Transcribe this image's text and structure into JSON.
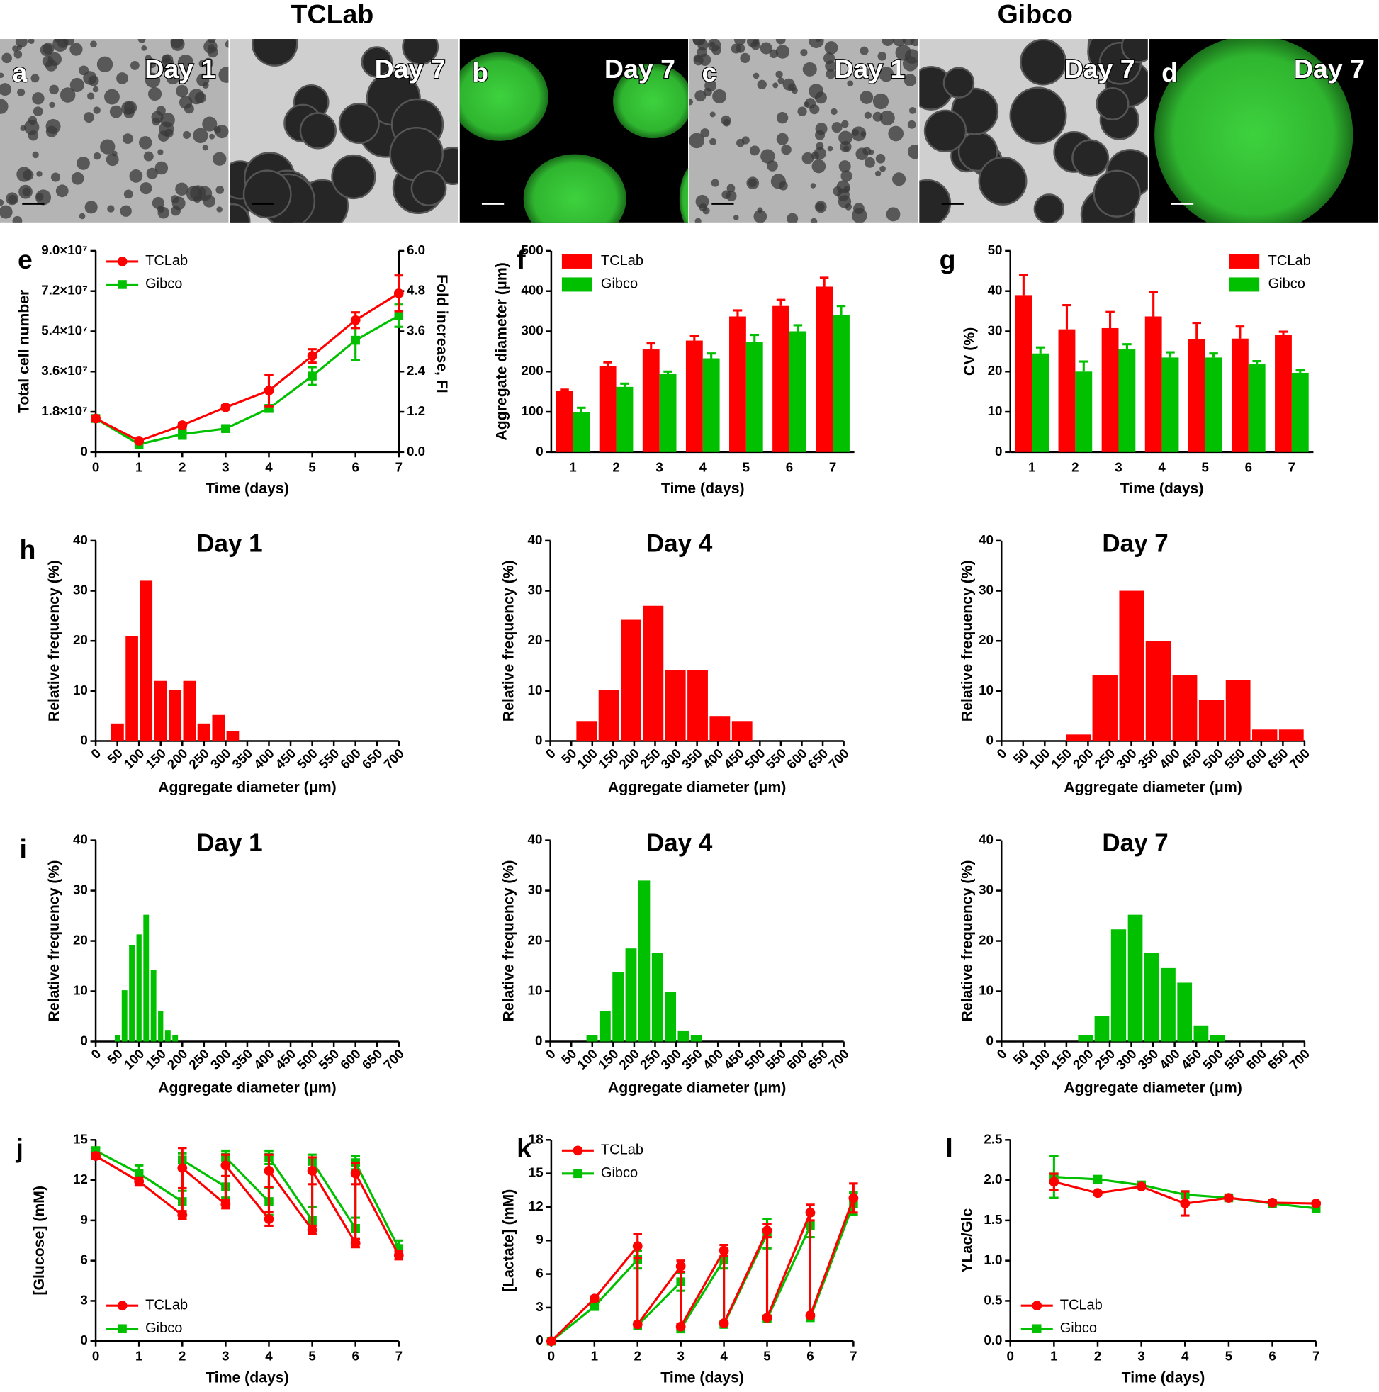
{
  "header": {
    "left": "TCLab",
    "right": "Gibco"
  },
  "images": [
    {
      "panel": "a",
      "label": "Day 1"
    },
    {
      "label": "Day 7"
    },
    {
      "panel": "b",
      "label": "Day 7"
    },
    {
      "panel": "c",
      "label": "Day 1"
    },
    {
      "label": "Day 7"
    },
    {
      "panel": "d",
      "label": "Day 7"
    }
  ],
  "chart_data": [
    {
      "type": "line",
      "panel": "e",
      "xlabel": "Time (days)",
      "ylabel": "Total cell number",
      "y2label": "Fold increase, FI",
      "x": [
        0,
        1,
        2,
        3,
        4,
        5,
        6,
        7
      ],
      "xlim": [
        0,
        7
      ],
      "xticks": [
        0,
        1,
        2,
        3,
        4,
        5,
        6,
        7
      ],
      "ylim": [
        0,
        90000000
      ],
      "yticks": [
        0,
        {
          "value": 18000000,
          "label": "1.8×10⁷"
        },
        {
          "value": 36000000,
          "label": "3.6×10⁷"
        },
        {
          "value": 54000000,
          "label": "5.4×10⁷"
        },
        {
          "value": 72000000,
          "label": "7.2×10⁷"
        },
        {
          "value": 90000000,
          "label": "9.0×10⁷"
        }
      ],
      "y2lim": [
        0,
        6
      ],
      "y2ticks": [
        {
          "value": 0,
          "label": "0.0"
        },
        1.2,
        2.4,
        3.6,
        4.8,
        {
          "value": 6,
          "label": "6.0"
        }
      ],
      "legend": "upper left",
      "series": [
        {
          "name": "TCLab",
          "color": "#ff0000",
          "marker": "circle",
          "values": [
            15000000,
            5000000,
            12000000,
            20000000,
            27500000,
            43000000,
            59000000,
            71000000
          ],
          "errors": [
            1000000,
            500000,
            1000000,
            1000000,
            7000000,
            3000000,
            3500000,
            8000000
          ]
        },
        {
          "name": "Gibco",
          "color": "#00c000",
          "marker": "square",
          "values": [
            15000000,
            3500000,
            8000000,
            10500000,
            19500000,
            34000000,
            50000000,
            61000000
          ],
          "errors": [
            1000000,
            500000,
            2000000,
            1000000,
            1000000,
            4000000,
            9000000,
            5000000
          ]
        }
      ]
    },
    {
      "type": "bar",
      "panel": "f",
      "xlabel": "Time (days)",
      "ylabel": "Aggregate diameter (μm)",
      "categories": [
        "1",
        "2",
        "3",
        "4",
        "5",
        "6",
        "7"
      ],
      "ylim": [
        0,
        500
      ],
      "yticks": [
        0,
        100,
        200,
        300,
        400,
        500
      ],
      "legend": "upper left",
      "series": [
        {
          "name": "TCLab",
          "color": "#ff0000",
          "values": [
            152,
            213,
            255,
            277,
            337,
            363,
            411
          ],
          "errors": [
            3,
            10,
            15,
            12,
            15,
            15,
            22
          ]
        },
        {
          "name": "Gibco",
          "color": "#00c000",
          "values": [
            100,
            162,
            195,
            233,
            273,
            300,
            341
          ],
          "errors": [
            10,
            8,
            5,
            12,
            18,
            15,
            22
          ]
        }
      ]
    },
    {
      "type": "bar",
      "panel": "g",
      "xlabel": "Time (days)",
      "ylabel": "CV (%)",
      "categories": [
        "1",
        "2",
        "3",
        "4",
        "5",
        "6",
        "7"
      ],
      "ylim": [
        0,
        50
      ],
      "yticks": [
        0,
        10,
        20,
        30,
        40,
        50
      ],
      "legend": "upper right",
      "series": [
        {
          "name": "TCLab",
          "color": "#ff0000",
          "values": [
            39,
            30.5,
            30.8,
            33.7,
            28.1,
            28.2,
            29.1
          ],
          "errors": [
            5,
            6,
            4,
            6,
            4,
            3,
            0.8
          ]
        },
        {
          "name": "Gibco",
          "color": "#00c000",
          "values": [
            24.5,
            20,
            25.5,
            23.5,
            23.5,
            21.8,
            19.7
          ],
          "errors": [
            1.5,
            2.5,
            1.3,
            1.3,
            1,
            0.8,
            0.6
          ]
        }
      ]
    },
    {
      "type": "histogram",
      "panel": "h",
      "title": "Day 1",
      "xlabel": "Aggregate diameter (μm)",
      "ylabel": "Relative frequency (%)",
      "color": "#ff0000",
      "bins": [
        33,
        67,
        100,
        133,
        167,
        200,
        233,
        267,
        300,
        333
      ],
      "values": [
        3.5,
        21,
        32,
        12,
        10.2,
        12,
        3.5,
        5.2,
        2
      ],
      "xlim": [
        0,
        700
      ],
      "xticks": [
        0,
        50,
        100,
        150,
        200,
        250,
        300,
        350,
        400,
        450,
        500,
        550,
        600,
        650,
        700
      ],
      "ylim": [
        0,
        40
      ],
      "yticks": [
        0,
        10,
        20,
        30,
        40
      ]
    },
    {
      "type": "histogram",
      "title": "Day 4",
      "xlabel": "Aggregate diameter (μm)",
      "ylabel": "Relative frequency (%)",
      "color": "#ff0000",
      "bins": [
        60,
        113,
        166,
        219,
        272,
        325,
        378,
        431,
        484
      ],
      "values": [
        4,
        10.2,
        24.2,
        27,
        14.2,
        14.2,
        5,
        4
      ],
      "xlim": [
        0,
        700
      ],
      "xticks": [
        0,
        50,
        100,
        150,
        200,
        250,
        300,
        350,
        400,
        450,
        500,
        550,
        600,
        650,
        700
      ],
      "ylim": [
        0,
        40
      ],
      "yticks": [
        0,
        10,
        20,
        30,
        40
      ]
    },
    {
      "type": "histogram",
      "title": "Day 7",
      "xlabel": "Aggregate diameter (μm)",
      "ylabel": "Relative frequency (%)",
      "color": "#ff0000",
      "bins": [
        147,
        208,
        270,
        331,
        393,
        454,
        516,
        577,
        639,
        700
      ],
      "values": [
        1.3,
        13.2,
        30,
        20,
        13.2,
        8.2,
        12.2,
        2.3,
        2.3
      ],
      "xlim": [
        0,
        700
      ],
      "xticks": [
        0,
        50,
        100,
        150,
        200,
        250,
        300,
        350,
        400,
        450,
        500,
        550,
        600,
        650,
        700
      ],
      "ylim": [
        0,
        40
      ],
      "yticks": [
        0,
        10,
        20,
        30,
        40
      ]
    },
    {
      "type": "histogram",
      "panel": "i",
      "title": "Day 1",
      "xlabel": "Aggregate diameter (μm)",
      "ylabel": "Relative frequency (%)",
      "color": "#00c000",
      "bins": [
        42,
        58,
        75,
        92,
        108,
        125,
        142,
        158,
        175,
        192
      ],
      "values": [
        1.2,
        10.2,
        19.2,
        21.3,
        25.2,
        14.2,
        6,
        2.3,
        1.2
      ],
      "xlim": [
        0,
        700
      ],
      "xticks": [
        0,
        50,
        100,
        150,
        200,
        250,
        300,
        350,
        400,
        450,
        500,
        550,
        600,
        650,
        700
      ],
      "ylim": [
        0,
        40
      ],
      "yticks": [
        0,
        10,
        20,
        30,
        40
      ]
    },
    {
      "type": "histogram",
      "title": "Day 4",
      "xlabel": "Aggregate diameter (μm)",
      "ylabel": "Relative frequency (%)",
      "color": "#00c000",
      "bins": [
        84,
        115,
        146,
        177,
        208,
        240,
        271,
        302,
        333,
        364
      ],
      "values": [
        1.2,
        6,
        13.8,
        18.5,
        32,
        17.6,
        9.8,
        2.2,
        1.2
      ],
      "xlim": [
        0,
        700
      ],
      "xticks": [
        0,
        50,
        100,
        150,
        200,
        250,
        300,
        350,
        400,
        450,
        500,
        550,
        600,
        650,
        700
      ],
      "ylim": [
        0,
        40
      ],
      "yticks": [
        0,
        10,
        20,
        30,
        40
      ]
    },
    {
      "type": "histogram",
      "title": "Day 7",
      "xlabel": "Aggregate diameter (μm)",
      "ylabel": "Relative frequency (%)",
      "color": "#00c000",
      "bins": [
        175,
        213,
        251,
        290,
        328,
        366,
        404,
        442,
        480,
        518
      ],
      "values": [
        1.2,
        5,
        22.3,
        25.2,
        17.6,
        14.6,
        11.7,
        3.2,
        1.2
      ],
      "xlim": [
        0,
        700
      ],
      "xticks": [
        0,
        50,
        100,
        150,
        200,
        250,
        300,
        350,
        400,
        450,
        500,
        550,
        600,
        650,
        700
      ],
      "ylim": [
        0,
        40
      ],
      "yticks": [
        0,
        10,
        20,
        30,
        40
      ]
    },
    {
      "type": "line",
      "panel": "j",
      "xlabel": "Time (days)",
      "ylabel": "[Glucose] (mM)",
      "x": [
        0,
        1,
        2,
        2,
        3,
        3,
        4,
        4,
        5,
        5,
        6,
        6,
        7
      ],
      "xlim": [
        0,
        7
      ],
      "xticks": [
        0,
        1,
        2,
        3,
        4,
        5,
        6,
        7
      ],
      "ylim": [
        0,
        15
      ],
      "yticks": [
        0,
        3,
        6,
        9,
        12,
        15
      ],
      "legend": "lower left",
      "series": [
        {
          "name": "TCLab",
          "color": "#ff0000",
          "marker": "circle",
          "values": [
            13.8,
            11.9,
            9.4,
            12.9,
            10.2,
            13.1,
            9.1,
            12.7,
            8.3,
            12.7,
            7.3,
            12.5,
            6.4
          ],
          "errors": [
            0.2,
            0.3,
            0.3,
            1.5,
            0.3,
            0.8,
            0.5,
            1.2,
            0.3,
            1,
            0.3,
            0.8,
            0.3
          ]
        },
        {
          "name": "Gibco",
          "color": "#00c000",
          "marker": "square",
          "values": [
            14.2,
            12.5,
            10.4,
            13.5,
            11.5,
            13.7,
            10.4,
            13.7,
            9,
            13.4,
            8.4,
            13.3,
            6.9
          ],
          "errors": [
            0.2,
            0.6,
            0.8,
            0.5,
            0.8,
            0.5,
            1,
            0.5,
            1,
            0.5,
            0.8,
            0.5,
            0.6
          ]
        }
      ]
    },
    {
      "type": "line",
      "panel": "k",
      "xlabel": "Time (days)",
      "ylabel": "[Lactate] (mM)",
      "x": [
        0,
        1,
        2,
        2,
        3,
        3,
        4,
        4,
        5,
        5,
        6,
        6,
        7
      ],
      "xlim": [
        0,
        7
      ],
      "xticks": [
        0,
        1,
        2,
        3,
        4,
        5,
        6,
        7
      ],
      "ylim": [
        0,
        18
      ],
      "yticks": [
        0,
        3,
        6,
        9,
        12,
        15,
        18
      ],
      "legend": "upper left",
      "series": [
        {
          "name": "TCLab",
          "color": "#ff0000",
          "marker": "circle",
          "values": [
            0,
            3.8,
            8.5,
            1.5,
            6.7,
            1.3,
            8.1,
            1.6,
            9.9,
            2.1,
            11.5,
            2.3,
            12.8
          ],
          "errors": [
            0.1,
            0.2,
            1.1,
            0.1,
            0.5,
            0.2,
            0.5,
            0.1,
            0.6,
            0.1,
            0.7,
            0.1,
            1.3
          ]
        },
        {
          "name": "Gibco",
          "color": "#00c000",
          "marker": "square",
          "values": [
            0,
            3.1,
            7.3,
            1.4,
            5.3,
            1.1,
            7.3,
            1.5,
            9.6,
            2,
            10.3,
            2.1,
            12.3
          ],
          "errors": [
            0.1,
            0.2,
            0.8,
            0.1,
            0.8,
            0.1,
            0.8,
            0.1,
            1.3,
            0.1,
            1,
            0.1,
            1
          ]
        }
      ]
    },
    {
      "type": "line",
      "panel": "l",
      "xlabel": "Time (days)",
      "ylabel": "YLac/Glc",
      "x": [
        1,
        2,
        3,
        4,
        5,
        6,
        7
      ],
      "xlim": [
        0,
        7
      ],
      "xticks": [
        0,
        1,
        2,
        3,
        4,
        5,
        6,
        7
      ],
      "ylim": [
        0,
        2.5
      ],
      "yticks": [
        {
          "value": 0,
          "label": "0.0"
        },
        0.5,
        {
          "value": 1,
          "label": "1.0"
        },
        1.5,
        {
          "value": 2,
          "label": "2.0"
        },
        2.5
      ],
      "legend": "lower left",
      "series": [
        {
          "name": "TCLab",
          "color": "#ff0000",
          "marker": "circle",
          "values": [
            1.98,
            1.84,
            1.92,
            1.71,
            1.78,
            1.72,
            1.71
          ],
          "errors": [
            0.1,
            0.02,
            0.02,
            0.15,
            0.02,
            0.02,
            0.02
          ]
        },
        {
          "name": "Gibco",
          "color": "#00c000",
          "marker": "square",
          "values": [
            2.04,
            2.01,
            1.94,
            1.82,
            1.78,
            1.71,
            1.65
          ],
          "errors": [
            0.26,
            0.04,
            0.02,
            0.03,
            0.02,
            0.02,
            0.02
          ]
        }
      ]
    }
  ]
}
